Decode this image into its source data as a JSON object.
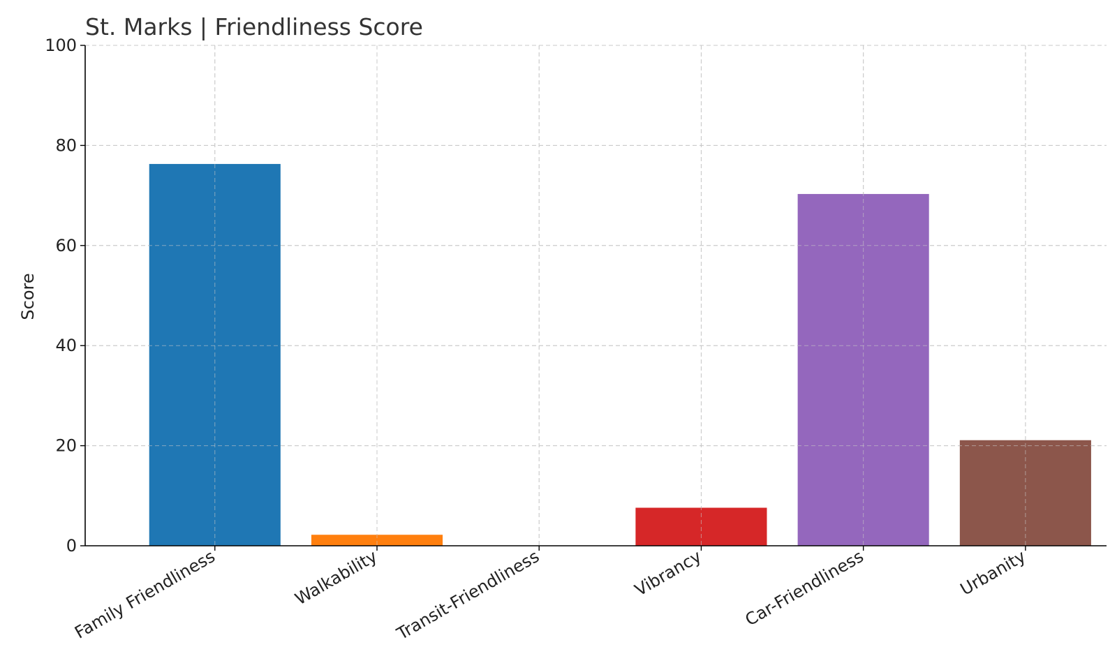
{
  "chart_data": {
    "type": "bar",
    "title": "St. Marks |  Friendliness Score",
    "xlabel": "",
    "ylabel": "Score",
    "categories": [
      "Family Friendliness",
      "Walkability",
      "Transit-Friendliness",
      "Vibrancy",
      "Car-Friendliness",
      "Urbanity"
    ],
    "values": [
      76.3,
      2.2,
      0,
      7.6,
      70.3,
      21.1
    ],
    "colors": [
      "#1f77b4",
      "#ff7f0e",
      "#2ca02c",
      "#d62728",
      "#9467bd",
      "#8c564b"
    ],
    "ylim": [
      0,
      100
    ],
    "yticks": [
      0,
      20,
      40,
      60,
      80,
      100
    ],
    "grid": true
  }
}
